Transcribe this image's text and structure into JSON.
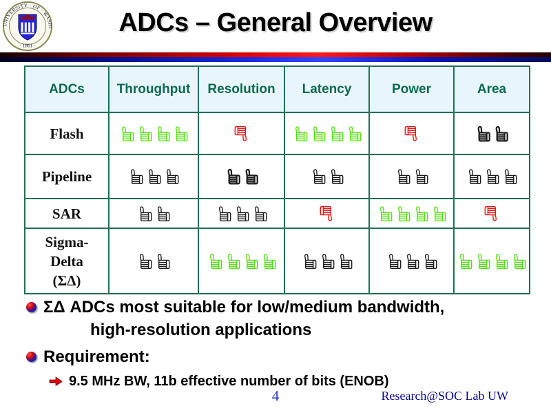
{
  "slide": {
    "title": "ADCs – General Overview",
    "page_number": "4",
    "footer_credit": "Research@SOC Lab UW"
  },
  "logo": {
    "ring_text": "UNIVERSITY · OF · WASHINGTON",
    "year": "· 1861 ·"
  },
  "table": {
    "columns": [
      "ADCs",
      "Throughput",
      "Resolution",
      "Latency",
      "Power",
      "Area"
    ],
    "rows": [
      {
        "key": "flash",
        "label": "Flash",
        "cells": [
          {
            "icon": "thumb-up",
            "count": 4,
            "color": "green"
          },
          {
            "icon": "thumb-down",
            "count": 1,
            "color": "red"
          },
          {
            "icon": "thumb-up",
            "count": 4,
            "color": "green"
          },
          {
            "icon": "thumb-down",
            "count": 1,
            "color": "red"
          },
          {
            "icon": "thumb-up",
            "count": 2,
            "color": "black",
            "weight": "bold"
          }
        ]
      },
      {
        "key": "pipeline",
        "label": "Pipeline",
        "cells": [
          {
            "icon": "thumb-up",
            "count": 3,
            "color": "black"
          },
          {
            "icon": "thumb-up",
            "count": 2,
            "color": "black",
            "weight": "bold"
          },
          {
            "icon": "thumb-up",
            "count": 2,
            "color": "black"
          },
          {
            "icon": "thumb-up",
            "count": 2,
            "color": "black"
          },
          {
            "icon": "thumb-up",
            "count": 3,
            "color": "black"
          }
        ]
      },
      {
        "key": "sar",
        "label": "SAR",
        "cells": [
          {
            "icon": "thumb-up",
            "count": 2,
            "color": "black"
          },
          {
            "icon": "thumb-up",
            "count": 3,
            "color": "black"
          },
          {
            "icon": "thumb-down",
            "count": 1,
            "color": "red"
          },
          {
            "icon": "thumb-up",
            "count": 4,
            "color": "green"
          },
          {
            "icon": "thumb-down",
            "count": 1,
            "color": "red"
          }
        ]
      },
      {
        "key": "sigma-delta",
        "label": "Sigma-\nDelta\n(ΣΔ)",
        "cells": [
          {
            "icon": "thumb-up",
            "count": 2,
            "color": "black"
          },
          {
            "icon": "thumb-up",
            "count": 4,
            "color": "green"
          },
          {
            "icon": "thumb-up",
            "count": 3,
            "color": "black"
          },
          {
            "icon": "thumb-up",
            "count": 3,
            "color": "black"
          },
          {
            "icon": "thumb-up",
            "count": 4,
            "color": "green"
          }
        ]
      }
    ]
  },
  "bullets": [
    {
      "type": "ball",
      "lines": [
        "ΣΔ ADCs most suitable for low/medium bandwidth,",
        "high-resolution applications"
      ]
    },
    {
      "type": "ball",
      "lines": [
        "Requirement:"
      ]
    },
    {
      "type": "arrow",
      "lines": [
        "9.5 MHz BW, 11b effective number of bits (ENOB)"
      ]
    }
  ],
  "colors": {
    "thumb_green": "#55dd11",
    "thumb_red": "#ee1111",
    "thumb_black": "#1c1c1c",
    "table_border": "#1f6f55",
    "header_bg": "#e9f5fc",
    "header_text": "#0b6b4c",
    "page_number_blue": "#2233cc",
    "credit_blue": "#000099"
  }
}
